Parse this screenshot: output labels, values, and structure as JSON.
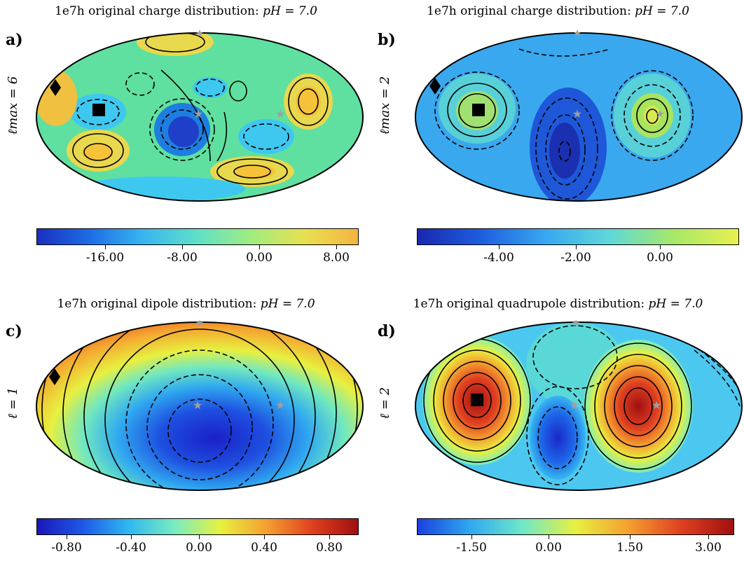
{
  "panels": [
    {
      "letter": "a)",
      "title_prefix": "1e7h original charge distribution:",
      "title_math": "pH = 7.0",
      "ylabel": "ℓmax = 6",
      "colormap": "jet-soft",
      "colorbar_ticks": [
        "-16.00",
        "-8.00",
        "0.00",
        "8.00"
      ]
    },
    {
      "letter": "b)",
      "title_prefix": "1e7h original charge distribution:",
      "title_math": "pH = 7.0",
      "ylabel": "ℓmax = 2",
      "colormap": "jet-soft",
      "colorbar_ticks": [
        "-4.00",
        "-2.00",
        "0.00"
      ]
    },
    {
      "letter": "c)",
      "title_prefix": "1e7h original dipole distribution:",
      "title_math": "pH = 7.0",
      "ylabel": "ℓ = 1",
      "colormap": "jet",
      "colorbar_ticks": [
        "-0.80",
        "-0.40",
        "0.00",
        "0.40",
        "0.80"
      ]
    },
    {
      "letter": "d)",
      "title_prefix": "1e7h original quadrupole distribution:",
      "title_math": "pH = 7.0",
      "ylabel": "ℓ = 2",
      "colormap": "jet",
      "colorbar_ticks": [
        "-1.50",
        "0.00",
        "1.50",
        "3.00"
      ]
    }
  ],
  "colors": {
    "marker_black": "#000000",
    "marker_star": "#a0a0a0"
  }
}
